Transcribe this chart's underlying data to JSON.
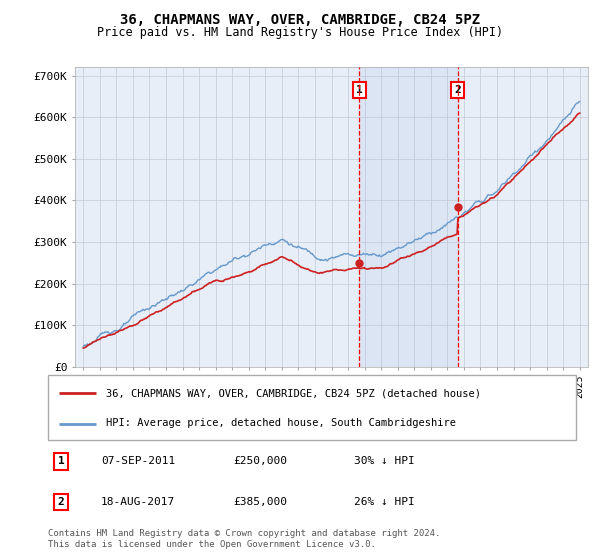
{
  "title": "36, CHAPMANS WAY, OVER, CAMBRIDGE, CB24 5PZ",
  "subtitle": "Price paid vs. HM Land Registry's House Price Index (HPI)",
  "ylim": [
    0,
    720000
  ],
  "yticks": [
    0,
    100000,
    200000,
    300000,
    400000,
    500000,
    600000,
    700000
  ],
  "ytick_labels": [
    "£0",
    "£100K",
    "£200K",
    "£300K",
    "£400K",
    "£500K",
    "£600K",
    "£700K"
  ],
  "background_color": "#ffffff",
  "plot_bg_color": "#e8eef8",
  "grid_color": "#c0c8d8",
  "hpi_color": "#6699cc",
  "price_color": "#cc2222",
  "marker1_x": 2011.68,
  "marker1_y": 250000,
  "marker2_x": 2017.63,
  "marker2_y": 385000,
  "shade_color": "#c8d8f0",
  "legend_label1": "36, CHAPMANS WAY, OVER, CAMBRIDGE, CB24 5PZ (detached house)",
  "legend_label2": "HPI: Average price, detached house, South Cambridgeshire",
  "annotation1_num": "1",
  "annotation1_date": "07-SEP-2011",
  "annotation1_price": "£250,000",
  "annotation1_hpi": "30% ↓ HPI",
  "annotation2_num": "2",
  "annotation2_date": "18-AUG-2017",
  "annotation2_price": "£385,000",
  "annotation2_hpi": "26% ↓ HPI",
  "footer": "Contains HM Land Registry data © Crown copyright and database right 2024.\nThis data is licensed under the Open Government Licence v3.0.",
  "xlim_start": 1994.5,
  "xlim_end": 2025.5
}
